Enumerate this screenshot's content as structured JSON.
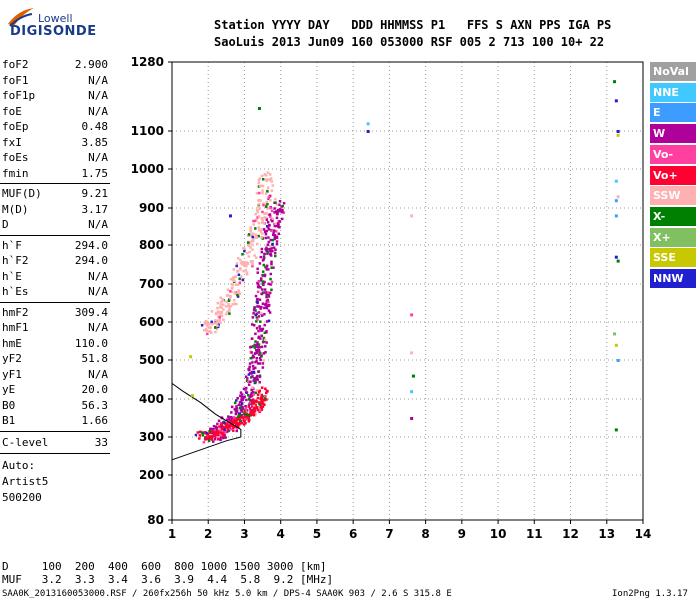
{
  "logo": {
    "line1": "Lowell",
    "line2": "DIGISONDE"
  },
  "header": {
    "row1": "Station YYYY DAY   DDD HHMMSS P1   FFS S AXN PPS IGA PS",
    "row2": "SaoLuis 2013 Jun09 160 053000 RSF 005 2 713 100 10+ 22"
  },
  "params_group1": [
    {
      "name": "foF2",
      "value": "2.900"
    },
    {
      "name": "foF1",
      "value": "N/A"
    },
    {
      "name": "foF1p",
      "value": "N/A"
    },
    {
      "name": "foE",
      "value": "N/A"
    },
    {
      "name": "foEp",
      "value": "0.48"
    },
    {
      "name": "fxI",
      "value": "3.85"
    },
    {
      "name": "foEs",
      "value": "N/A"
    },
    {
      "name": "fmin",
      "value": "1.75"
    }
  ],
  "params_group2": [
    {
      "name": "MUF(D)",
      "value": "9.21"
    },
    {
      "name": "M(D)",
      "value": "3.17"
    },
    {
      "name": "D",
      "value": "N/A"
    }
  ],
  "params_group3": [
    {
      "name": "h`F",
      "value": "294.0"
    },
    {
      "name": "h`F2",
      "value": "294.0"
    },
    {
      "name": "h`E",
      "value": "N/A"
    },
    {
      "name": "h`Es",
      "value": "N/A"
    }
  ],
  "params_group4": [
    {
      "name": "hmF2",
      "value": "309.4"
    },
    {
      "name": "hmF1",
      "value": "N/A"
    },
    {
      "name": "hmE",
      "value": "110.0"
    },
    {
      "name": "yF2",
      "value": "51.8"
    },
    {
      "name": "yF1",
      "value": "N/A"
    },
    {
      "name": "yE",
      "value": "20.0"
    },
    {
      "name": "B0",
      "value": "56.3"
    },
    {
      "name": "B1",
      "value": "1.66"
    }
  ],
  "clevel": {
    "name": "C-level",
    "value": "33"
  },
  "autoscale": {
    "line1": "Auto:",
    "line2": "Artist5",
    "line3": "500200"
  },
  "legend": [
    {
      "label": "NoVal",
      "color": "#a0a0a0"
    },
    {
      "label": "NNE",
      "color": "#40c8ff"
    },
    {
      "label": "E",
      "color": "#3c9cff"
    },
    {
      "label": "W",
      "color": "#b0009a"
    },
    {
      "label": "Vo-",
      "color": "#ff40a0"
    },
    {
      "label": "Vo+",
      "color": "#ff0030"
    },
    {
      "label": "SSW",
      "color": "#ffb0b0"
    },
    {
      "label": "X-",
      "color": "#008000"
    },
    {
      "label": "X+",
      "color": "#80c060"
    },
    {
      "label": "SSE",
      "color": "#c8c800"
    },
    {
      "label": "NNW",
      "color": "#2020d0"
    }
  ],
  "bottom": {
    "d_row": "D     100  200  400  600  800 1000 1500 3000 [km]",
    "muf_row": "MUF   3.2  3.3  3.4  3.6  3.9  4.4  5.8  9.2 [MHz]"
  },
  "footer": {
    "left": "SAA0K_2013160053000.RSF / 260fx256h 50 kHz 5.0 km / DPS-4 SAA0K 903 / 2.6 S 315.8 E",
    "right": "Ion2Png 1.3.17"
  },
  "chart_data": {
    "type": "scatter",
    "title": "",
    "xlabel": "",
    "ylabel": "",
    "xlim": [
      1,
      14
    ],
    "ylim": [
      80,
      1280
    ],
    "x_ticks": [
      1,
      2,
      3,
      4,
      5,
      6,
      7,
      8,
      9,
      10,
      11,
      12,
      13,
      14
    ],
    "y_ticks": [
      80,
      200,
      300,
      400,
      500,
      600,
      700,
      800,
      900,
      1000,
      1100,
      1280
    ],
    "grid": true,
    "trace_o": {
      "name": "O-trace",
      "color": "#b0009a",
      "points": [
        [
          2.0,
          300
        ],
        [
          2.4,
          320
        ],
        [
          2.8,
          350
        ],
        [
          3.1,
          400
        ],
        [
          3.3,
          480
        ],
        [
          3.4,
          560
        ],
        [
          3.5,
          650
        ],
        [
          3.6,
          750
        ],
        [
          3.75,
          850
        ],
        [
          3.9,
          920
        ]
      ]
    },
    "trace_lower": {
      "name": "E/F lower",
      "color": "#ff0030",
      "points": [
        [
          1.8,
          300
        ],
        [
          2.2,
          310
        ],
        [
          2.6,
          330
        ],
        [
          3.0,
          350
        ],
        [
          3.3,
          380
        ],
        [
          3.5,
          420
        ]
      ]
    },
    "trace_upper": {
      "name": "F2 upper",
      "color": "#ffb0b0",
      "points": [
        [
          2.0,
          580
        ],
        [
          2.3,
          620
        ],
        [
          2.7,
          680
        ],
        [
          3.0,
          750
        ],
        [
          3.3,
          830
        ],
        [
          3.5,
          900
        ],
        [
          3.6,
          1000
        ]
      ]
    },
    "profile_line": {
      "color": "#000000",
      "points": [
        [
          1.0,
          440
        ],
        [
          1.3,
          420
        ],
        [
          1.8,
          390
        ],
        [
          2.2,
          360
        ],
        [
          2.9,
          320
        ],
        [
          2.9,
          300
        ],
        [
          2.5,
          290
        ],
        [
          1.0,
          240
        ]
      ]
    },
    "isolated_dots": [
      {
        "x": 6.4,
        "y": 1120,
        "color": "#40c8ff"
      },
      {
        "x": 6.4,
        "y": 1100,
        "color": "#2020d0"
      },
      {
        "x": 7.6,
        "y": 880,
        "color": "#ffb0b0"
      },
      {
        "x": 7.6,
        "y": 620,
        "color": "#ff40a0"
      },
      {
        "x": 7.6,
        "y": 520,
        "color": "#ffb0b0"
      },
      {
        "x": 7.65,
        "y": 460,
        "color": "#008000"
      },
      {
        "x": 7.6,
        "y": 420,
        "color": "#40c8ff"
      },
      {
        "x": 7.6,
        "y": 350,
        "color": "#b0009a"
      },
      {
        "x": 13.2,
        "y": 1230,
        "color": "#008000"
      },
      {
        "x": 13.25,
        "y": 1180,
        "color": "#2020d0"
      },
      {
        "x": 13.3,
        "y": 1100,
        "color": "#2020d0"
      },
      {
        "x": 13.3,
        "y": 1090,
        "color": "#c8c800"
      },
      {
        "x": 13.25,
        "y": 970,
        "color": "#40c8ff"
      },
      {
        "x": 13.3,
        "y": 930,
        "color": "#ffb0b0"
      },
      {
        "x": 13.25,
        "y": 920,
        "color": "#3c9cff"
      },
      {
        "x": 13.25,
        "y": 880,
        "color": "#3c9cff"
      },
      {
        "x": 13.25,
        "y": 770,
        "color": "#2020d0"
      },
      {
        "x": 13.3,
        "y": 760,
        "color": "#008000"
      },
      {
        "x": 13.2,
        "y": 570,
        "color": "#80c060"
      },
      {
        "x": 13.25,
        "y": 540,
        "color": "#c8c800"
      },
      {
        "x": 13.3,
        "y": 500,
        "color": "#3c9cff"
      },
      {
        "x": 13.25,
        "y": 320,
        "color": "#008000"
      },
      {
        "x": 1.55,
        "y": 410,
        "color": "#c8c800"
      },
      {
        "x": 1.5,
        "y": 510,
        "color": "#c8c800"
      },
      {
        "x": 2.6,
        "y": 880,
        "color": "#2020d0"
      },
      {
        "x": 3.4,
        "y": 1160,
        "color": "#008000"
      }
    ]
  }
}
